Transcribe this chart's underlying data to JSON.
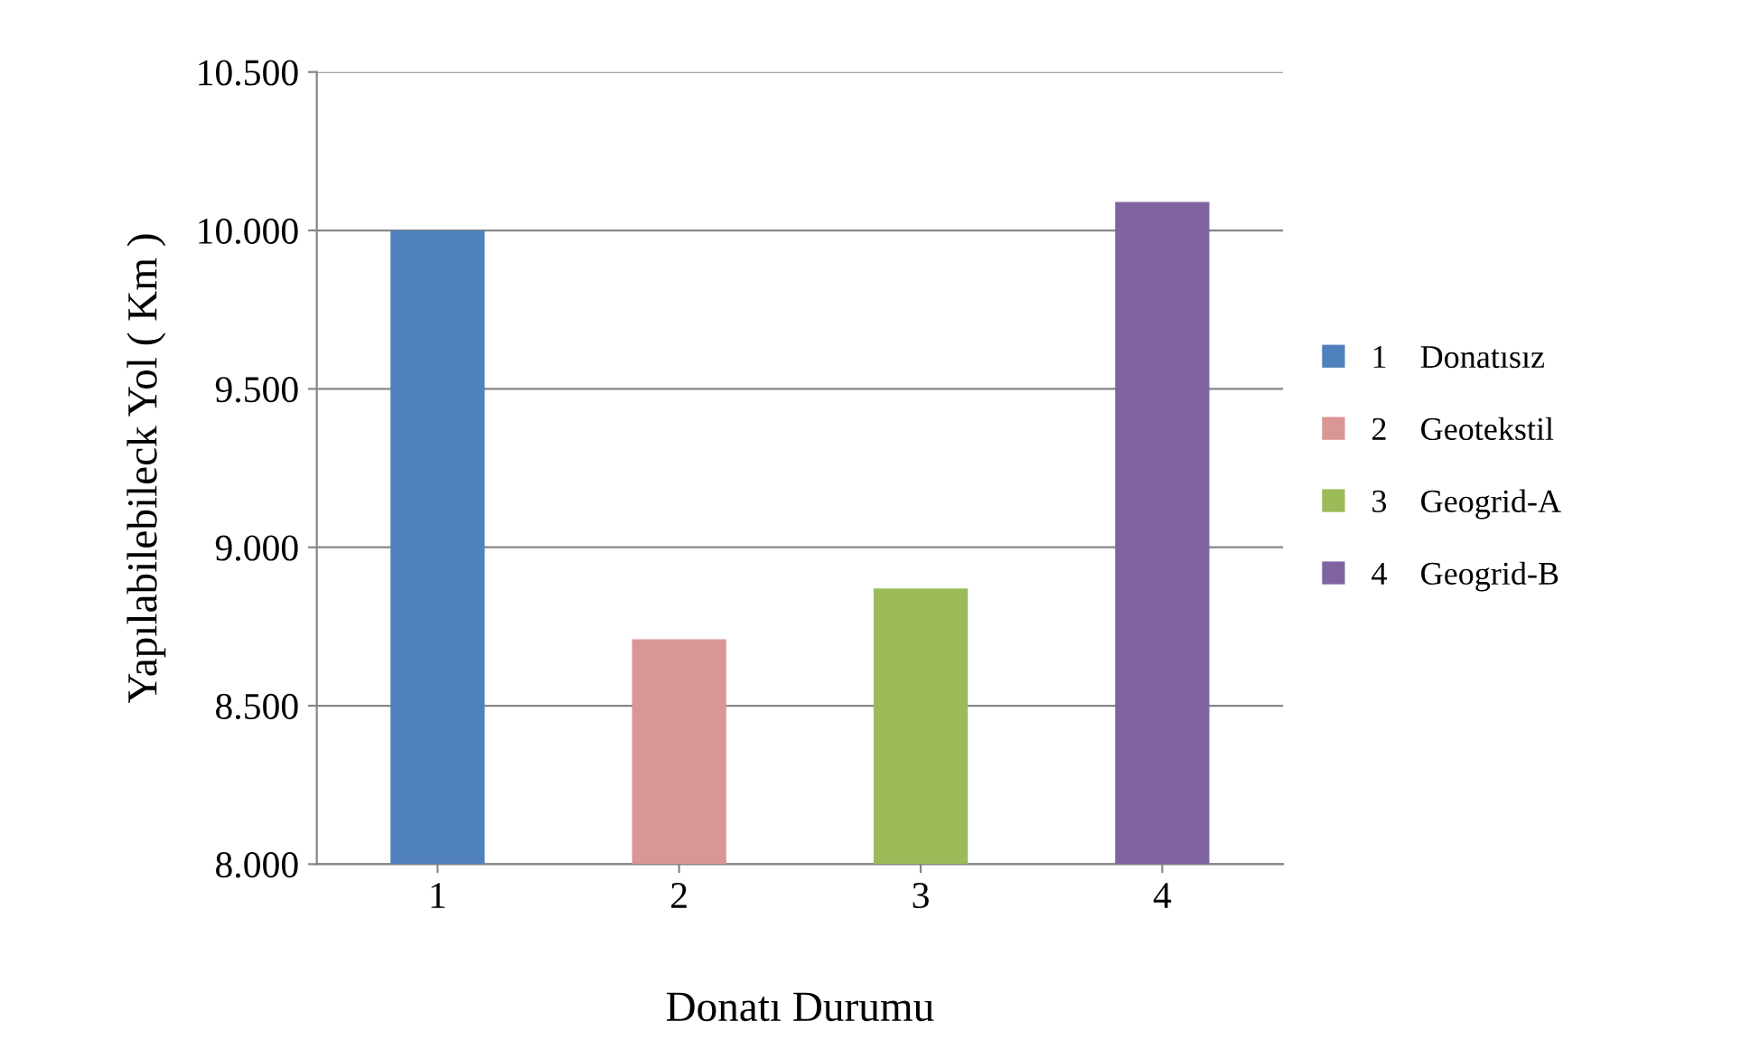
{
  "chart_data": {
    "type": "bar",
    "xlabel": "Donatı Durumu",
    "ylabel": "Yapılabilebileck Yol ( Km )",
    "categories": [
      "1",
      "2",
      "3",
      "4"
    ],
    "series": [
      {
        "name": "1    Donatısız",
        "color": "#4f81bd",
        "values": [
          10000,
          null,
          null,
          null
        ]
      },
      {
        "name": "2    Geotekstil",
        "color": "#d99694",
        "values": [
          null,
          8710,
          null,
          null
        ]
      },
      {
        "name": "3    Geogrid-A",
        "color": "#9bbb59",
        "values": [
          null,
          null,
          8870,
          null
        ]
      },
      {
        "name": "4    Geogrid-B",
        "color": "#8064a2",
        "values": [
          null,
          null,
          null,
          10090
        ]
      }
    ],
    "ylim": [
      8000,
      10500
    ],
    "yticks": [
      {
        "value": 8000,
        "label": "8.000"
      },
      {
        "value": 8500,
        "label": "8.500"
      },
      {
        "value": 9000,
        "label": "9.000"
      },
      {
        "value": 9500,
        "label": "9.500"
      },
      {
        "value": 10000,
        "label": "10.000"
      },
      {
        "value": 10500,
        "label": "10.500"
      }
    ],
    "grid": "y",
    "legend": "right"
  }
}
